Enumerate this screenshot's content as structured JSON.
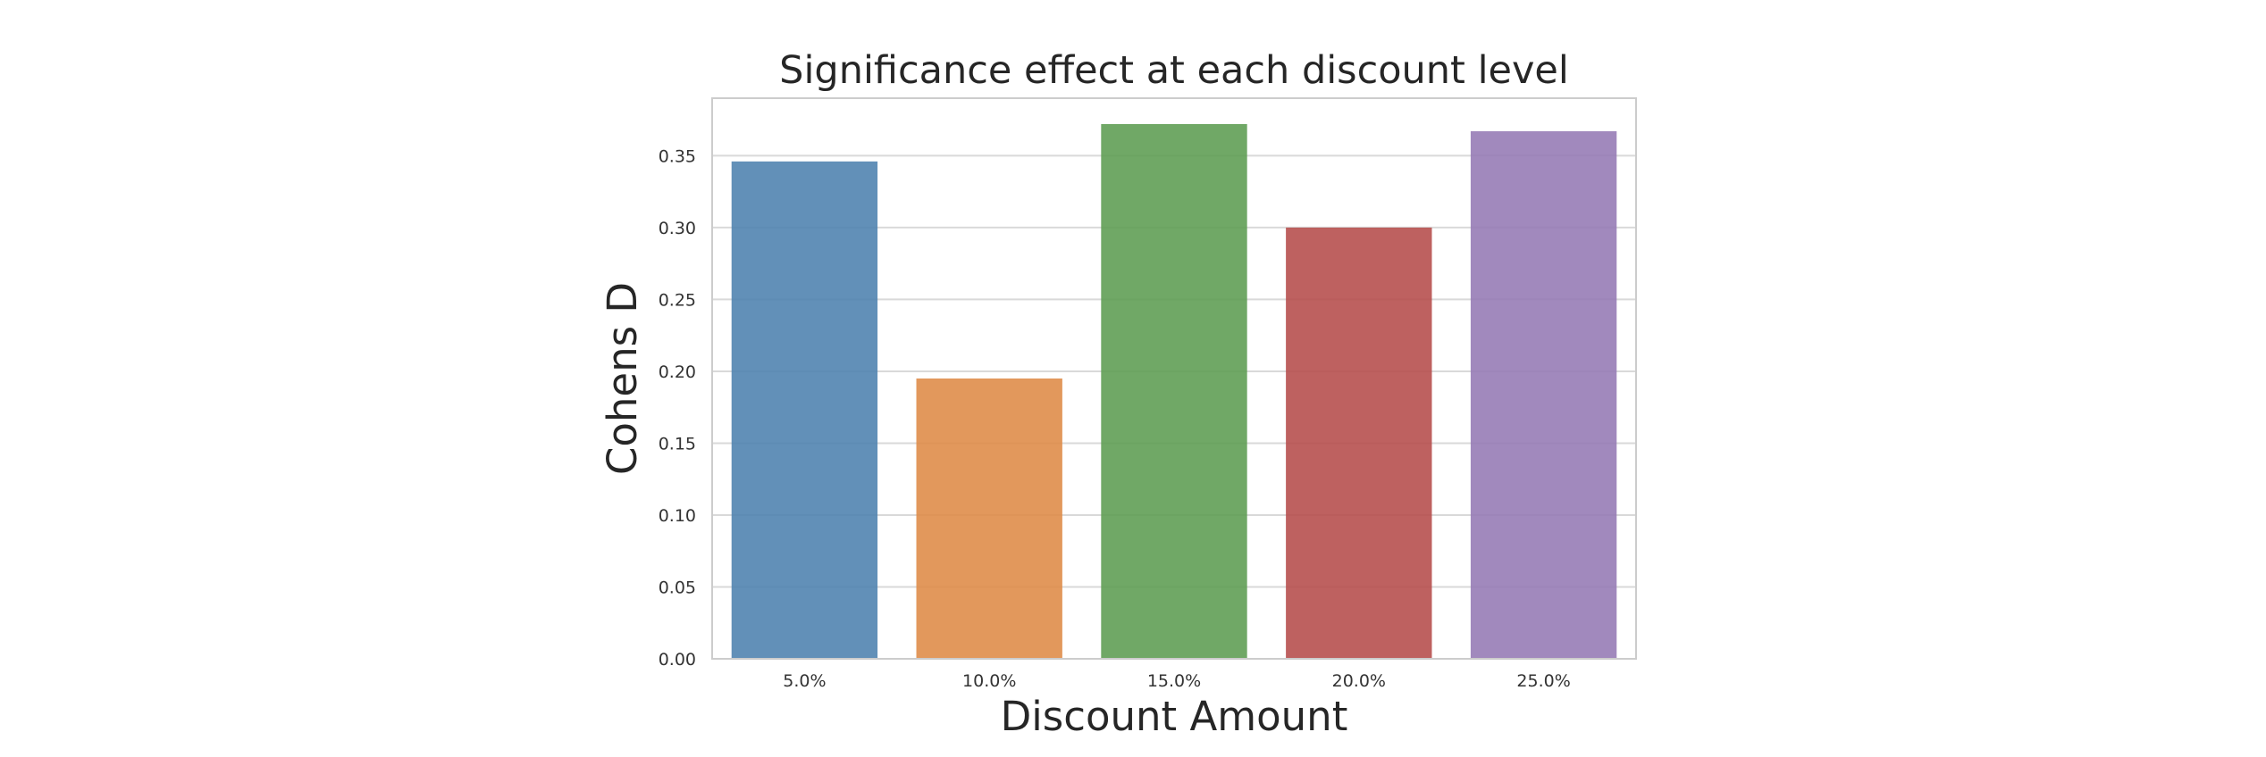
{
  "chart_data": {
    "type": "bar",
    "title": "Significance effect at each discount level",
    "xlabel": "Discount Amount",
    "ylabel": "Cohens D",
    "categories": [
      "5.0%",
      "10.0%",
      "15.0%",
      "20.0%",
      "25.0%"
    ],
    "values": [
      0.346,
      0.195,
      0.372,
      0.3,
      0.367
    ],
    "yticks": [
      "0.00",
      "0.05",
      "0.10",
      "0.15",
      "0.20",
      "0.25",
      "0.30",
      "0.35"
    ],
    "ylim": [
      0,
      0.39
    ],
    "grid": true,
    "legend": "none",
    "colors": [
      "#4c81ae",
      "#de8a45",
      "#5c9c51",
      "#b54b4a",
      "#9479b4"
    ],
    "bar_opacity": 0.88
  }
}
